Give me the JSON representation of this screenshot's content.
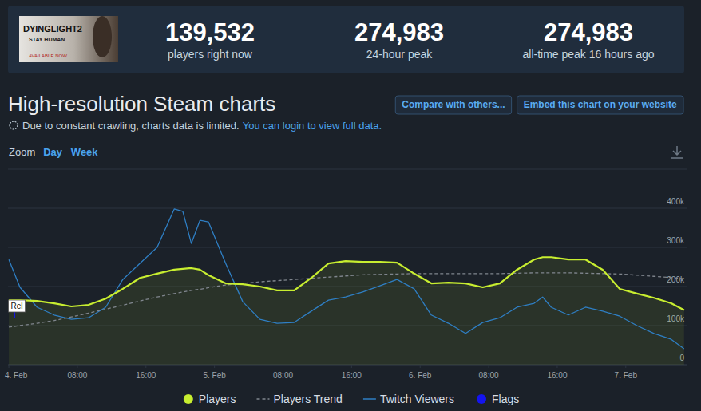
{
  "header": {
    "logo": {
      "title": "DYINGLIGHT2",
      "subtitle": "STAY HUMAN",
      "note": "AVAILABLE NOW"
    },
    "stats": [
      {
        "value": "139,532",
        "label": "players right now"
      },
      {
        "value": "274,983",
        "label": "24-hour peak"
      },
      {
        "value": "274,983",
        "label": "all-time peak 16 hours ago"
      }
    ]
  },
  "page": {
    "title": "High-resolution Steam charts",
    "buttons": [
      "Compare with others...",
      "Embed this chart on your website"
    ],
    "notice": "Due to constant crawling, charts data is limited.",
    "notice_link": "You can login to view full data.",
    "zoom_label": "Zoom",
    "zoom_options": [
      "Day",
      "Week"
    ]
  },
  "chart_data": {
    "type": "line",
    "x": [
      0,
      1.3,
      3.3,
      5.3,
      7.3,
      9.3,
      11.3,
      13.3,
      15.3,
      17.3,
      19.3,
      20.3,
      21.3,
      22.3,
      23.3,
      25.3,
      27.3,
      29.3,
      31.3,
      33.3,
      35.3,
      37.3,
      39.3,
      41.3,
      43.3,
      45.3,
      47.3,
      49.3,
      51.3,
      53.3,
      55.3,
      57.3,
      59.3,
      61.3,
      62.3,
      63.3,
      65.3,
      67.3,
      69.3,
      71.3,
      73.3,
      75.3,
      77.3,
      78.8
    ],
    "xlim": [
      -0.1,
      79.1
    ],
    "xticks": [
      {
        "value": 0,
        "label": "4. Feb"
      },
      {
        "value": 8,
        "label": "08:00"
      },
      {
        "value": 16,
        "label": "16:00"
      },
      {
        "value": 24,
        "label": "5. Feb"
      },
      {
        "value": 32,
        "label": "08:00"
      },
      {
        "value": 40,
        "label": "16:00"
      },
      {
        "value": 48,
        "label": "6. Feb"
      },
      {
        "value": 56,
        "label": "08:00"
      },
      {
        "value": 64,
        "label": "16:00"
      },
      {
        "value": 72,
        "label": "7. Feb"
      }
    ],
    "ylim": [
      0,
      500000
    ],
    "yticks": [
      0,
      {
        "value": 100000,
        "label": "100k"
      },
      {
        "value": 200000,
        "label": "200k"
      },
      {
        "value": 300000,
        "label": "300k"
      },
      {
        "value": 400000,
        "label": "400k"
      }
    ],
    "grid": true,
    "legend": "bottom",
    "series": [
      {
        "name": "Players",
        "type": "area",
        "color": "#c8ee30",
        "line_style": "solid",
        "values": [
          165000,
          165000,
          163000,
          157000,
          149000,
          153000,
          169000,
          194000,
          222000,
          233000,
          243000,
          245000,
          247000,
          243000,
          229000,
          208000,
          206000,
          200000,
          190000,
          190000,
          222000,
          259000,
          265000,
          263000,
          263000,
          261000,
          233000,
          208000,
          210000,
          208000,
          198000,
          208000,
          243000,
          269000,
          275000,
          275000,
          269000,
          269000,
          243000,
          194000,
          182000,
          171000,
          157000,
          140000
        ]
      },
      {
        "name": "Players Trend",
        "type": "line",
        "color": "#80868e",
        "line_style": "dashed",
        "values": [
          96000,
          100000,
          106000,
          113000,
          122000,
          132000,
          142000,
          152000,
          163000,
          173000,
          182000,
          186000,
          190000,
          193000,
          197000,
          204000,
          208000,
          212000,
          215000,
          218000,
          221000,
          224000,
          227000,
          230000,
          231000,
          232000,
          233000,
          233000,
          233000,
          233000,
          233000,
          233000,
          234000,
          235000,
          235000,
          235000,
          235000,
          234000,
          233000,
          232000,
          229000,
          226000,
          223000,
          220000
        ]
      },
      {
        "name": "Twitch Viewers",
        "type": "line",
        "color": "#2f7fc4",
        "line_style": "solid",
        "values": [
          269000,
          198000,
          147000,
          127000,
          116000,
          120000,
          147000,
          218000,
          259000,
          300000,
          398000,
          392000,
          310000,
          369000,
          365000,
          259000,
          161000,
          116000,
          106000,
          108000,
          137000,
          165000,
          173000,
          186000,
          202000,
          218000,
          194000,
          127000,
          106000,
          80000,
          108000,
          120000,
          147000,
          157000,
          173000,
          147000,
          127000,
          147000,
          137000,
          124000,
          100000,
          80000,
          65000,
          41000
        ]
      },
      {
        "name": "Flags",
        "type": "flags",
        "color": "#1414f0",
        "flags": [
          {
            "x": 0.7,
            "text": "Rel"
          }
        ]
      }
    ]
  }
}
